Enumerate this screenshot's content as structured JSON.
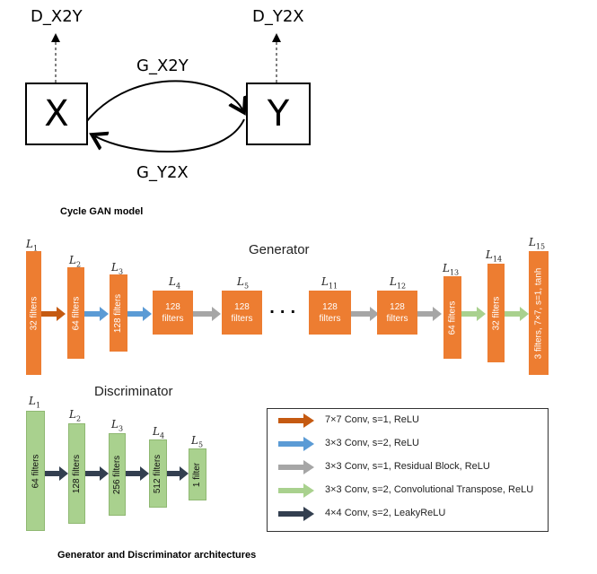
{
  "cycle": {
    "node_x": "X",
    "node_y": "Y",
    "d_x2y": "D_X2Y",
    "d_y2x": "D_Y2X",
    "g_x2y": "G_X2Y",
    "g_y2x": "G_Y2X",
    "caption": "Cycle GAN model"
  },
  "generator": {
    "title": "Generator",
    "layers": [
      {
        "label": "L",
        "sub": "1",
        "text": "32 filters"
      },
      {
        "label": "L",
        "sub": "2",
        "text": "64 filters"
      },
      {
        "label": "L",
        "sub": "3",
        "text": "128 filters"
      },
      {
        "label": "L",
        "sub": "4",
        "text": "128\nfilters"
      },
      {
        "label": "L",
        "sub": "5",
        "text": "128\nfilters"
      },
      {
        "label": "L",
        "sub": "11",
        "text": "128\nfilters"
      },
      {
        "label": "L",
        "sub": "12",
        "text": "128\nfilters"
      },
      {
        "label": "L",
        "sub": "13",
        "text": "64 filters"
      },
      {
        "label": "L",
        "sub": "14",
        "text": "32 filters"
      },
      {
        "label": "L",
        "sub": "15",
        "text": "3 filters, 7×7, s=1, tanh"
      }
    ],
    "ellipsis": "· · ·"
  },
  "discriminator": {
    "title": "Discriminator",
    "layers": [
      {
        "label": "L",
        "sub": "1",
        "text": "64 filters"
      },
      {
        "label": "L",
        "sub": "2",
        "text": "128 filters"
      },
      {
        "label": "L",
        "sub": "3",
        "text": "256 filters"
      },
      {
        "label": "L",
        "sub": "4",
        "text": "512 filters"
      },
      {
        "label": "L",
        "sub": "5",
        "text": "1 filter"
      }
    ]
  },
  "legend": [
    {
      "text": "7×7 Conv, s=1, ReLU",
      "color": "#c55a11"
    },
    {
      "text": "3×3 Conv, s=2, ReLU",
      "color": "#5b9bd5"
    },
    {
      "text": "3×3 Conv, s=1, Residual Block, ReLU",
      "color": "#a6a6a6"
    },
    {
      "text": "3×3 Conv, s=2, Convolutional Transpose, ReLU",
      "color": "#a9d18e"
    },
    {
      "text": "4×4 Conv, s=2, LeakyReLU",
      "color": "#333f50"
    }
  ],
  "caption_bottom": "Generator and Discriminator architectures"
}
